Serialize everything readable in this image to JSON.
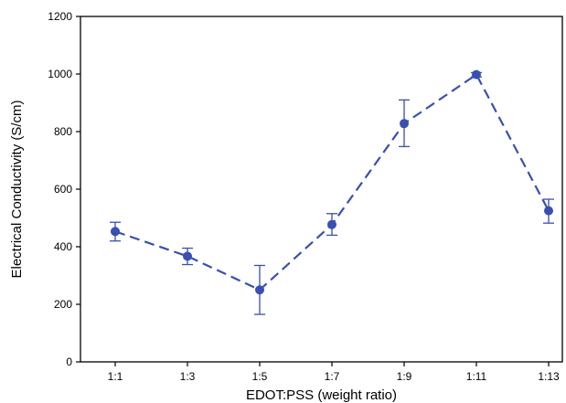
{
  "chart_data": {
    "type": "line",
    "xlabel": "EDOT:PSS (weight ratio)",
    "ylabel": "Electrical Conductivity (S/cm)",
    "categories": [
      "1:1",
      "1:3",
      "1:5",
      "1:7",
      "1:9",
      "1:11",
      "1:13"
    ],
    "series": [
      {
        "values": [
          453,
          367,
          250,
          477,
          828,
          998,
          525
        ],
        "error_low": [
          420,
          338,
          165,
          440,
          748,
          990,
          482
        ],
        "error_high": [
          485,
          395,
          335,
          515,
          910,
          1005,
          565
        ],
        "color": "#3a4fb0",
        "line_style": "dashed"
      }
    ],
    "ylim": [
      0,
      1200
    ],
    "yticks": [
      0,
      200,
      400,
      600,
      800,
      1000,
      1200
    ],
    "grid": false,
    "legend": "none"
  }
}
